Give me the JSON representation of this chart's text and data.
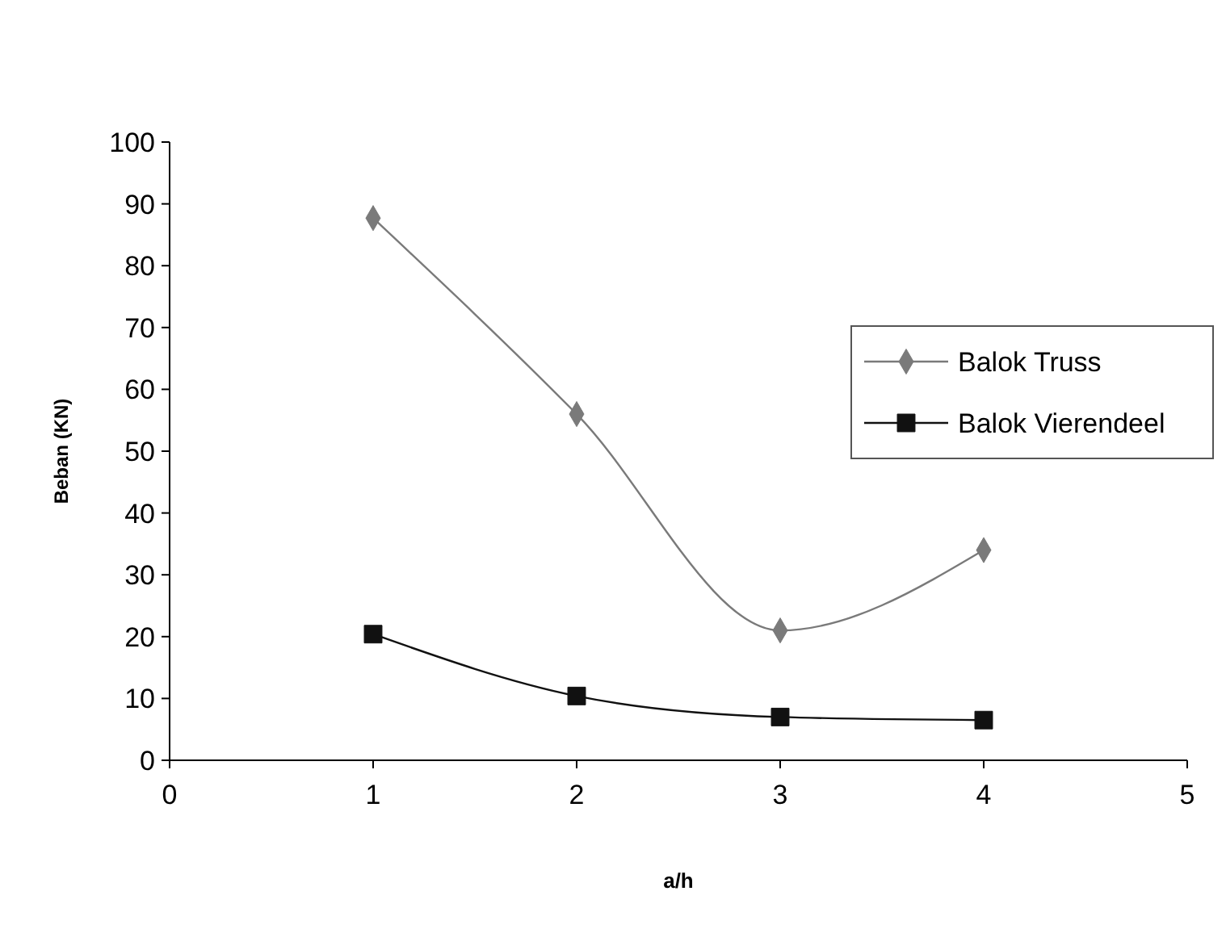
{
  "chart_data": {
    "type": "line",
    "xlabel": "a/h",
    "ylabel": "Beban (KN)",
    "x": [
      1,
      2,
      3,
      4
    ],
    "series": [
      {
        "name": "Balok Truss",
        "color": "#7a7a7a",
        "marker": "diamond",
        "values": [
          87.7,
          56,
          21,
          34
        ]
      },
      {
        "name": "Balok Vierendeel",
        "color": "#111111",
        "marker": "square",
        "values": [
          20.4,
          10.4,
          7,
          6.5
        ]
      }
    ],
    "xlim": [
      0,
      5
    ],
    "xticks": [
      0,
      1,
      2,
      3,
      4,
      5
    ],
    "ylim": [
      0,
      100
    ],
    "yticks": [
      0,
      10,
      20,
      30,
      40,
      50,
      60,
      70,
      80,
      90,
      100
    ],
    "grid": false,
    "legend": "right"
  }
}
